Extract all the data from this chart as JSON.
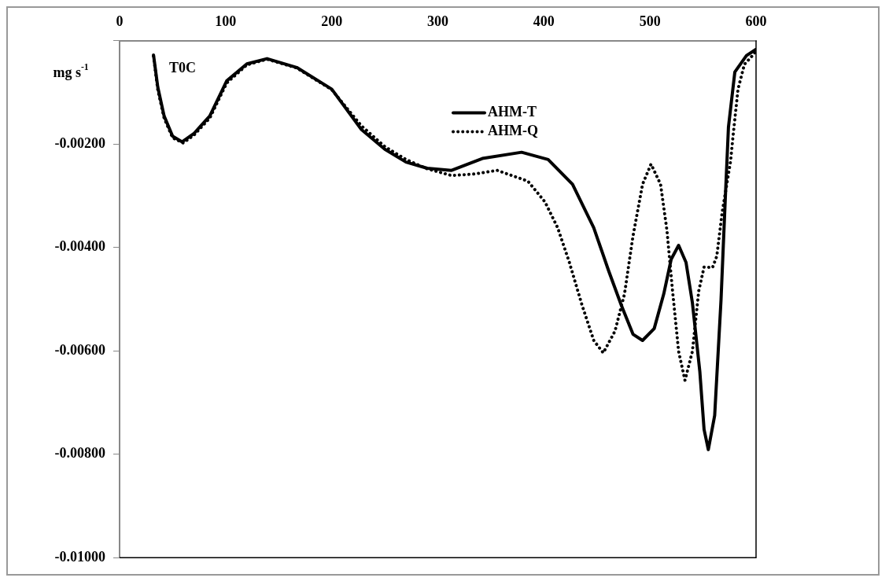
{
  "chart_data": {
    "type": "line",
    "xlabel": "T0C",
    "ylabel": "mg s$^{-1}$",
    "xlim": [
      0,
      600
    ],
    "xticks": [
      0,
      100,
      200,
      300,
      400,
      500,
      600
    ],
    "ylim": [
      -0.01,
      0
    ],
    "yticks": [
      {
        "value": 0,
        "label": null
      },
      {
        "value": -0.002,
        "label": "-0.00200"
      },
      {
        "value": -0.004,
        "label": "-0.00400"
      },
      {
        "value": -0.006,
        "label": "-0.00600"
      },
      {
        "value": -0.008,
        "label": "-0.00800"
      },
      {
        "value": -0.01,
        "label": "-0.01000"
      }
    ],
    "grid": false,
    "legend": "top right",
    "marker": "none",
    "series": [
      {
        "name": "AHM-T",
        "color": "#000000",
        "line_style": "solid",
        "x": [
          32,
          36,
          42,
          50,
          59,
          70,
          85,
          101,
          120,
          139,
          167,
          200,
          228,
          250,
          270,
          290,
          313,
          342,
          379,
          404,
          427,
          447,
          461,
          473,
          484,
          493,
          504,
          513,
          520,
          527,
          534,
          540,
          547,
          551,
          555,
          561,
          567,
          571,
          574,
          580,
          591,
          600
        ],
        "values": [
          -0.00028,
          -0.0009,
          -0.00146,
          -0.00185,
          -0.00196,
          -0.0018,
          -0.00146,
          -0.00078,
          -0.00045,
          -0.00035,
          -0.00052,
          -0.00094,
          -0.00172,
          -0.0021,
          -0.00235,
          -0.00247,
          -0.00251,
          -0.00228,
          -0.00216,
          -0.0023,
          -0.00278,
          -0.00362,
          -0.00445,
          -0.00512,
          -0.00568,
          -0.0058,
          -0.00557,
          -0.0049,
          -0.00423,
          -0.00396,
          -0.00429,
          -0.00507,
          -0.0064,
          -0.00752,
          -0.00791,
          -0.00725,
          -0.00501,
          -0.00306,
          -0.00167,
          -0.00061,
          -0.00029,
          -0.00017
        ]
      },
      {
        "name": "AHM-Q",
        "color": "#000000",
        "line_style": "dotted",
        "x": [
          32,
          36,
          42,
          50,
          60,
          70,
          85,
          101,
          120,
          139,
          167,
          200,
          228,
          250,
          270,
          290,
          313,
          335,
          356,
          385,
          401,
          413,
          424,
          436,
          447,
          456,
          467,
          476,
          484,
          493,
          501,
          510,
          516,
          521,
          527,
          533,
          540,
          546,
          551,
          559,
          563,
          568,
          576,
          578,
          583,
          589,
          598,
          600
        ],
        "values": [
          -0.0003,
          -0.00095,
          -0.0015,
          -0.00188,
          -0.00198,
          -0.00183,
          -0.0015,
          -0.00082,
          -0.00047,
          -0.00036,
          -0.00053,
          -0.00095,
          -0.00165,
          -0.00205,
          -0.0023,
          -0.00248,
          -0.00261,
          -0.00258,
          -0.00251,
          -0.00272,
          -0.00312,
          -0.00362,
          -0.00429,
          -0.00512,
          -0.0058,
          -0.00604,
          -0.00562,
          -0.0049,
          -0.00378,
          -0.00278,
          -0.00239,
          -0.00278,
          -0.00367,
          -0.00478,
          -0.00601,
          -0.00657,
          -0.00601,
          -0.00484,
          -0.00438,
          -0.00439,
          -0.00417,
          -0.00333,
          -0.00233,
          -0.00191,
          -0.00094,
          -0.00046,
          -0.00026,
          -0.0002
        ]
      }
    ]
  }
}
